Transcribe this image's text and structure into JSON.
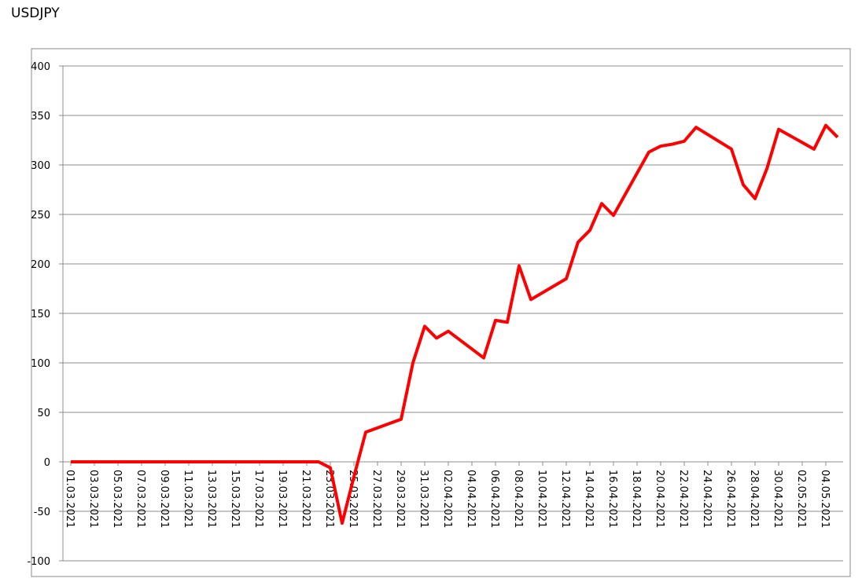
{
  "chart_data": {
    "type": "line",
    "title": "USDJPY",
    "x": [
      "01.03.2021",
      "02.03.2021",
      "03.03.2021",
      "04.03.2021",
      "05.03.2021",
      "08.03.2021",
      "09.03.2021",
      "10.03.2021",
      "11.03.2021",
      "12.03.2021",
      "15.03.2021",
      "16.03.2021",
      "17.03.2021",
      "18.03.2021",
      "19.03.2021",
      "22.03.2021",
      "23.03.2021",
      "24.03.2021",
      "25.03.2021",
      "26.03.2021",
      "29.03.2021",
      "30.03.2021",
      "31.03.2021",
      "01.04.2021",
      "02.04.2021",
      "05.04.2021",
      "06.04.2021",
      "07.04.2021",
      "08.04.2021",
      "09.04.2021",
      "12.04.2021",
      "13.04.2021",
      "14.04.2021",
      "15.04.2021",
      "16.04.2021",
      "19.04.2021",
      "20.04.2021",
      "21.04.2021",
      "22.04.2021",
      "23.04.2021",
      "26.04.2021",
      "27.04.2021",
      "28.04.2021",
      "29.04.2021",
      "30.04.2021",
      "03.05.2021",
      "04.05.2021",
      "05.05.2021"
    ],
    "values": [
      0,
      0,
      0,
      0,
      0,
      0,
      0,
      0,
      0,
      0,
      0,
      0,
      0,
      0,
      0,
      0,
      -6,
      -62,
      -15,
      30,
      43,
      100,
      137,
      125,
      132,
      105,
      143,
      141,
      198,
      164,
      185,
      222,
      234,
      261,
      249,
      313,
      319,
      321,
      324,
      338,
      316,
      280,
      266,
      296,
      336,
      316,
      340,
      328
    ],
    "color": "#ff0000",
    "ylim": [
      -100,
      400
    ],
    "yticks": [
      -100,
      -50,
      0,
      50,
      100,
      150,
      200,
      250,
      300,
      350,
      400
    ],
    "xticks": [
      "01.03.2021",
      "03.03.2021",
      "05.03.2021",
      "07.03.2021",
      "09.03.2021",
      "11.03.2021",
      "13.03.2021",
      "15.03.2021",
      "17.03.2021",
      "19.03.2021",
      "21.03.2021",
      "23.03.2021",
      "25.03.2021",
      "27.03.2021",
      "29.03.2021",
      "31.03.2021",
      "02.04.2021",
      "04.04.2021",
      "06.04.2021",
      "08.04.2021",
      "10.04.2021",
      "12.04.2021",
      "14.04.2021",
      "16.04.2021",
      "18.04.2021",
      "20.04.2021",
      "22.04.2021",
      "24.04.2021",
      "26.04.2021",
      "28.04.2021",
      "30.04.2021",
      "02.05.2021",
      "04.05.2021"
    ],
    "grid": true
  }
}
